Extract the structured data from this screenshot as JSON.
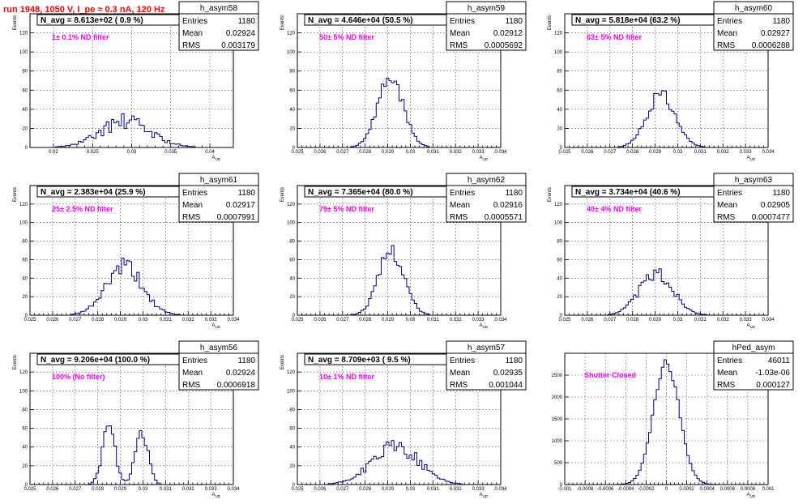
{
  "header": {
    "title": "run 1948,  1050 V, I_pe ≈ 0.3 nA, 120 Hz"
  },
  "colors": {
    "title": "#ff0000",
    "histogram": "#000080",
    "annotation": "#ff00ff"
  },
  "chart_data": [
    {
      "type": "bar",
      "name": "h_asym58",
      "navg": "N_avg = 8.613e+02 ( 0.9 %)",
      "filter": "1± 0.1% ND filter",
      "stats": [
        [
          "Entries",
          "1180"
        ],
        [
          "Mean",
          "0.02924"
        ],
        [
          "RMS",
          "0.003179"
        ]
      ],
      "ylabel": "Events",
      "xlabel": "A_UD",
      "ylim": [
        0,
        140
      ],
      "yticks": [
        0,
        20,
        40,
        60,
        80,
        100,
        120
      ],
      "ytick_labels": [
        "0",
        "20",
        "40",
        "60",
        "80",
        "100",
        "120"
      ],
      "xlim": [
        0.017,
        0.043
      ],
      "xticks": [
        0.02,
        0.025,
        0.03,
        0.035,
        0.04
      ],
      "xtick_labels": [
        "0.02",
        "0.025",
        "0.03",
        "0.035",
        "0.04"
      ],
      "peaks": [
        {
          "c": 0.0292,
          "s": 0.0032,
          "a": 27
        }
      ],
      "noise": 0.32,
      "seed": 58
    },
    {
      "type": "bar",
      "name": "h_asym59",
      "navg": "N_avg = 4.646e+04 (50.5 %)",
      "filter": "50± 5% ND filter",
      "stats": [
        [
          "Entries",
          "1180"
        ],
        [
          "Mean",
          "0.02912"
        ],
        [
          "RMS",
          "0.0005692"
        ]
      ],
      "ylabel": "Events",
      "xlabel": "A_UD",
      "ylim": [
        0,
        140
      ],
      "yticks": [
        0,
        20,
        40,
        60,
        80,
        100,
        120
      ],
      "ytick_labels": [
        "0",
        "20",
        "40",
        "60",
        "80",
        "100",
        "120"
      ],
      "xlim": [
        0.025,
        0.034
      ],
      "xticks": [
        0.025,
        0.026,
        0.027,
        0.028,
        0.029,
        0.03,
        0.031,
        0.032,
        0.033,
        0.034
      ],
      "xtick_labels": [
        "0.025",
        "0.026",
        "0.027",
        "0.028",
        "0.029",
        "0.03",
        "0.031",
        "0.032",
        "0.033",
        "0.034"
      ],
      "peaks": [
        {
          "c": 0.02912,
          "s": 0.00057,
          "a": 73
        }
      ],
      "noise": 0.12,
      "seed": 59
    },
    {
      "type": "bar",
      "name": "h_asym60",
      "navg": "N_avg = 5.818e+04 (63.2 %)",
      "filter": "63± 5% ND filter",
      "stats": [
        [
          "Entries",
          "1180"
        ],
        [
          "Mean",
          "0.02927"
        ],
        [
          "RMS",
          "0.0006288"
        ]
      ],
      "ylabel": "Events",
      "xlabel": "A_UD",
      "ylim": [
        0,
        140
      ],
      "yticks": [
        0,
        20,
        40,
        60,
        80,
        100,
        120
      ],
      "ytick_labels": [
        "0",
        "20",
        "40",
        "60",
        "80",
        "100",
        "120"
      ],
      "xlim": [
        0.025,
        0.034
      ],
      "xticks": [
        0.025,
        0.026,
        0.027,
        0.028,
        0.029,
        0.03,
        0.031,
        0.032,
        0.033,
        0.034
      ],
      "xtick_labels": [
        "0.025",
        "0.026",
        "0.027",
        "0.028",
        "0.029",
        "0.03",
        "0.031",
        "0.032",
        "0.033",
        "0.034"
      ],
      "peaks": [
        {
          "c": 0.02927,
          "s": 0.00063,
          "a": 56
        }
      ],
      "noise": 0.14,
      "seed": 60
    },
    {
      "type": "bar",
      "name": "h_asym61",
      "navg": "N_avg = 2.383e+04 (25.9 %)",
      "filter": "25± 2.5% ND filter",
      "stats": [
        [
          "Entries",
          "1180"
        ],
        [
          "Mean",
          "0.02917"
        ],
        [
          "RMS",
          "0.0007991"
        ]
      ],
      "ylabel": "Events",
      "xlabel": "A_UD",
      "ylim": [
        0,
        140
      ],
      "yticks": [
        0,
        20,
        40,
        60,
        80,
        100,
        120
      ],
      "ytick_labels": [
        "0",
        "20",
        "40",
        "60",
        "80",
        "100",
        "120"
      ],
      "xlim": [
        0.025,
        0.034
      ],
      "xticks": [
        0.025,
        0.026,
        0.027,
        0.028,
        0.029,
        0.03,
        0.031,
        0.032,
        0.033,
        0.034
      ],
      "xtick_labels": [
        "0.025",
        "0.026",
        "0.027",
        "0.028",
        "0.029",
        "0.03",
        "0.031",
        "0.032",
        "0.033",
        "0.034"
      ],
      "peaks": [
        {
          "c": 0.02917,
          "s": 0.0008,
          "a": 52
        }
      ],
      "noise": 0.2,
      "seed": 61
    },
    {
      "type": "bar",
      "name": "h_asym62",
      "navg": "N_avg = 7.365e+04 (80.0 %)",
      "filter": "79± 5% ND filter",
      "stats": [
        [
          "Entries",
          "1180"
        ],
        [
          "Mean",
          "0.02916"
        ],
        [
          "RMS",
          "0.0005571"
        ]
      ],
      "ylabel": "Events",
      "xlabel": "A_UD",
      "ylim": [
        0,
        140
      ],
      "yticks": [
        0,
        20,
        40,
        60,
        80,
        100,
        120
      ],
      "ytick_labels": [
        "0",
        "20",
        "40",
        "60",
        "80",
        "100",
        "120"
      ],
      "xlim": [
        0.025,
        0.034
      ],
      "xticks": [
        0.025,
        0.026,
        0.027,
        0.028,
        0.029,
        0.03,
        0.031,
        0.032,
        0.033,
        0.034
      ],
      "xtick_labels": [
        "0.025",
        "0.026",
        "0.027",
        "0.028",
        "0.029",
        "0.03",
        "0.031",
        "0.032",
        "0.033",
        "0.034"
      ],
      "peaks": [
        {
          "c": 0.02916,
          "s": 0.00056,
          "a": 70
        }
      ],
      "noise": 0.14,
      "seed": 62
    },
    {
      "type": "bar",
      "name": "h_asym63",
      "navg": "N_avg = 3.734e+04 (40.6 %)",
      "filter": "40± 4% ND filter",
      "stats": [
        [
          "Entries",
          "1180"
        ],
        [
          "Mean",
          "0.02905"
        ],
        [
          "RMS",
          "0.0007477"
        ]
      ],
      "ylabel": "Events",
      "xlabel": "A_UD",
      "ylim": [
        0,
        140
      ],
      "yticks": [
        0,
        20,
        40,
        60,
        80,
        100,
        120
      ],
      "ytick_labels": [
        "0",
        "20",
        "40",
        "60",
        "80",
        "100",
        "120"
      ],
      "xlim": [
        0.025,
        0.034
      ],
      "xticks": [
        0.025,
        0.026,
        0.027,
        0.028,
        0.029,
        0.03,
        0.031,
        0.032,
        0.033,
        0.034
      ],
      "xtick_labels": [
        "0.025",
        "0.026",
        "0.027",
        "0.028",
        "0.029",
        "0.03",
        "0.031",
        "0.032",
        "0.033",
        "0.034"
      ],
      "peaks": [
        {
          "c": 0.02905,
          "s": 0.00075,
          "a": 44
        }
      ],
      "noise": 0.18,
      "seed": 63
    },
    {
      "type": "bar",
      "name": "h_asym56",
      "navg": "N_avg = 9.206e+04 (100.0 %)",
      "filter": "100% (No filter)",
      "stats": [
        [
          "Entries",
          "1180"
        ],
        [
          "Mean",
          "0.02924"
        ],
        [
          "RMS",
          "0.0006918"
        ]
      ],
      "ylabel": "Events",
      "xlabel": "A_UD",
      "ylim": [
        0,
        140
      ],
      "yticks": [
        0,
        20,
        40,
        60,
        80,
        100,
        120
      ],
      "ytick_labels": [
        "0",
        "20",
        "40",
        "60",
        "80",
        "100",
        "120"
      ],
      "xlim": [
        0.025,
        0.034
      ],
      "xticks": [
        0.025,
        0.026,
        0.027,
        0.028,
        0.029,
        0.03,
        0.031,
        0.032,
        0.033,
        0.034
      ],
      "xtick_labels": [
        "0.025",
        "0.026",
        "0.027",
        "0.028",
        "0.029",
        "0.03",
        "0.031",
        "0.032",
        "0.033",
        "0.034"
      ],
      "peaks": [
        {
          "c": 0.02848,
          "s": 0.00028,
          "a": 62
        },
        {
          "c": 0.02995,
          "s": 0.00028,
          "a": 58
        }
      ],
      "noise": 0.18,
      "seed": 56
    },
    {
      "type": "bar",
      "name": "h_asym57",
      "navg": "N_avg = 8.709e+03 ( 9.5 %)",
      "filter": "10± 1% ND filter",
      "stats": [
        [
          "Entries",
          "1180"
        ],
        [
          "Mean",
          "0.02935"
        ],
        [
          "RMS",
          "0.001044"
        ]
      ],
      "ylabel": "Events",
      "xlabel": "A_UD",
      "ylim": [
        0,
        140
      ],
      "yticks": [
        0,
        20,
        40,
        60,
        80,
        100,
        120
      ],
      "ytick_labels": [
        "0",
        "20",
        "40",
        "60",
        "80",
        "100",
        "120"
      ],
      "xlim": [
        0.025,
        0.034
      ],
      "xticks": [
        0.025,
        0.026,
        0.027,
        0.028,
        0.029,
        0.03,
        0.031,
        0.032,
        0.033,
        0.034
      ],
      "xtick_labels": [
        "0.025",
        "0.026",
        "0.027",
        "0.028",
        "0.029",
        "0.03",
        "0.031",
        "0.032",
        "0.033",
        "0.034"
      ],
      "peaks": [
        {
          "c": 0.02935,
          "s": 0.00104,
          "a": 40
        }
      ],
      "noise": 0.22,
      "seed": 57
    },
    {
      "type": "bar",
      "name": "hPed_asym",
      "navg": "",
      "filter": "Shutter Closed",
      "stats": [
        [
          "Entries",
          "46011"
        ],
        [
          "Mean",
          "-1.03e-06"
        ],
        [
          "RMS",
          "0.000127"
        ]
      ],
      "ylabel": "",
      "xlabel": "A_UD",
      "ylim": [
        0,
        3000
      ],
      "yticks": [
        0,
        500,
        1000,
        1500,
        2000,
        2500
      ],
      "ytick_labels": [
        "0",
        "500",
        "1000",
        "1500",
        "2000",
        "2500"
      ],
      "xlim": [
        -0.001,
        0.001
      ],
      "xticks": [
        -0.001,
        -0.0008,
        -0.0006,
        -0.0004,
        -0.0002,
        0,
        0.0002,
        0.0004,
        0.0006,
        0.0008,
        0.001
      ],
      "xtick_labels": [
        "-0.001",
        "-0.0008",
        "-0.0006",
        "-0.0004",
        "-0.0002",
        "0",
        "0.0002",
        "0.0004",
        "0.0006",
        "0.0008",
        "0.001"
      ],
      "peaks": [
        {
          "c": 0.0,
          "s": 0.000127,
          "a": 2780
        }
      ],
      "noise": 0.04,
      "seed": 99
    }
  ]
}
